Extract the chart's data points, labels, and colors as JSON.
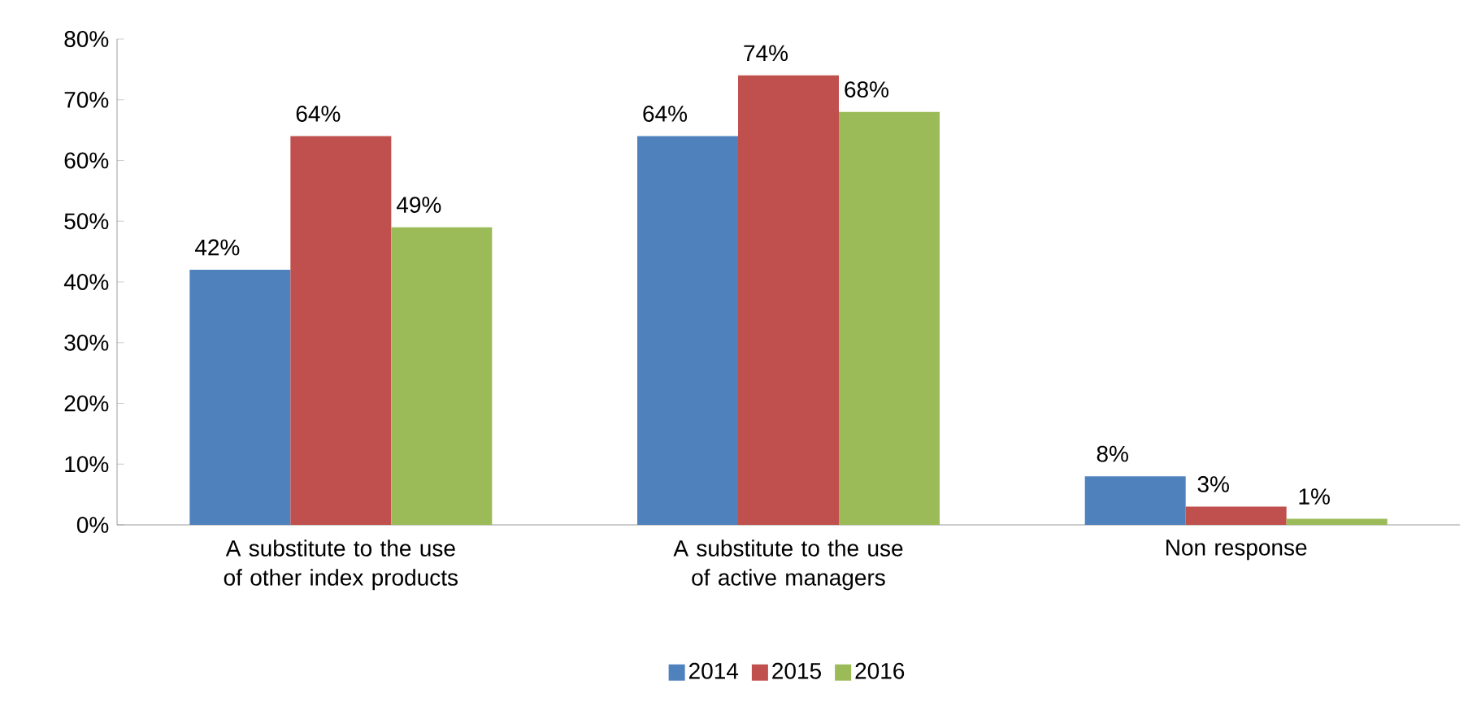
{
  "chart_data": {
    "type": "bar",
    "categories": [
      "A substitute to the use of other index products",
      "A substitute to the use of active managers",
      "Non response"
    ],
    "series": [
      {
        "name": "2014",
        "color": "#4f81bd",
        "values": [
          42,
          64,
          8
        ],
        "value_labels": [
          "42%",
          "64%",
          "8%"
        ]
      },
      {
        "name": "2015",
        "color": "#c0504d",
        "values": [
          64,
          74,
          3
        ],
        "value_labels": [
          "64%",
          "74%",
          "3%"
        ]
      },
      {
        "name": "2016",
        "color": "#9bbb59",
        "values": [
          49,
          68,
          1
        ],
        "value_labels": [
          "49%",
          "68%",
          "1%"
        ]
      }
    ],
    "ylim": [
      0,
      80
    ],
    "yticks": [
      {
        "value": 0,
        "label": "0%"
      },
      {
        "value": 10,
        "label": "10%"
      },
      {
        "value": 20,
        "label": "20%"
      },
      {
        "value": 30,
        "label": "30%"
      },
      {
        "value": 40,
        "label": "40%"
      },
      {
        "value": 50,
        "label": "50%"
      },
      {
        "value": 60,
        "label": "60%"
      },
      {
        "value": 70,
        "label": "70%"
      },
      {
        "value": 80,
        "label": "80%"
      }
    ],
    "grid": false,
    "legend": "bottom"
  }
}
